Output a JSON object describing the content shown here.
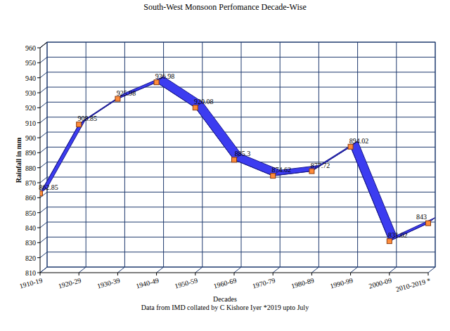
{
  "chart_data": {
    "type": "line",
    "title": "South-West Monsoon Perfomance Decade-Wise",
    "x_label": "Decades",
    "y_label": "Rainfall in mm",
    "annotations": [
      "Data from IMD collated by C Kishore Iyer *2019 upto July"
    ],
    "categories": [
      "1910-19",
      "1920-29",
      "1930-39",
      "1940-49",
      "1950-59",
      "1960-69",
      "1970-79",
      "1980-89",
      "1990-99",
      "2000-09",
      "2010-2019 *"
    ],
    "values": [
      862.85,
      908.85,
      925.98,
      936.98,
      920.08,
      885.3,
      874.62,
      877.72,
      894.02,
      831.02,
      843
    ],
    "color": "#3c3cf0",
    "marker": "square",
    "ylim": [
      810,
      960
    ],
    "yticks": [
      810,
      820,
      830,
      840,
      850,
      860,
      870,
      880,
      890,
      900,
      910,
      920,
      930,
      940,
      950,
      960
    ],
    "grid": true,
    "data_labels": true
  }
}
